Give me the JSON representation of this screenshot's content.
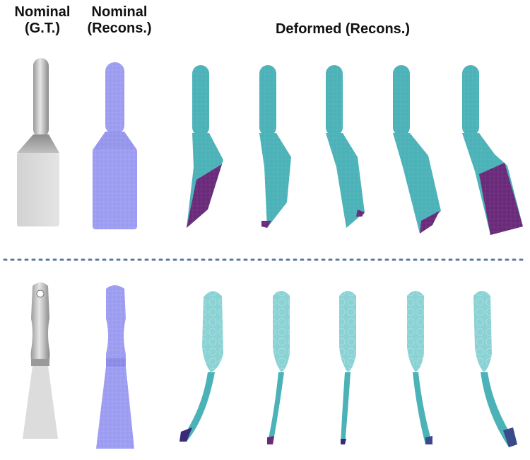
{
  "headers": {
    "nominal_gt": [
      "Nominal",
      "(G.T.)"
    ],
    "nominal_recons": [
      "Nominal",
      "(Recons.)"
    ],
    "deformed_recons": "Deformed (Recons.)"
  },
  "colors": {
    "gt_light": "#dcdcdc",
    "gt_mid": "#b4b4b4",
    "gt_dark": "#8a8a8a",
    "recon": "#9b9bf2",
    "recon_dark": "#7d7de0",
    "deformed": "#4bb2b8",
    "deformed_light": "#8ad2d4",
    "deformed_dark": "#2a8c92",
    "contact": "#6a2a7a",
    "divider": "#5a7a9a"
  },
  "rows": [
    {
      "object": "spatula",
      "deformed_count": 5
    },
    {
      "object": "putty-knife",
      "deformed_count": 5
    }
  ]
}
